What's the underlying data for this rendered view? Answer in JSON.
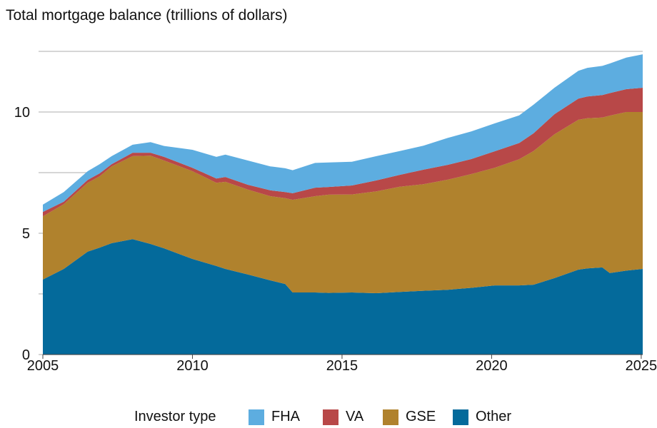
{
  "chart_data": {
    "type": "area",
    "stacked": true,
    "title": "Total mortgage balance (trillions of dollars)",
    "xlabel": "",
    "ylabel": "",
    "xlim": [
      2005,
      2025.05
    ],
    "ylim": [
      0,
      12.5
    ],
    "x_ticks": [
      2005,
      2010,
      2015,
      2020,
      2025
    ],
    "y_ticks": [
      0,
      5,
      10
    ],
    "y_gridlines": [
      0,
      2.5,
      5,
      7.5,
      10,
      12.5
    ],
    "grid": true,
    "legend": {
      "title": "Investor type",
      "placement": "bottom"
    },
    "x": [
      2005,
      2005.7,
      2006.5,
      2006.9,
      2007.3,
      2008.0,
      2008.6,
      2009.05,
      2010.0,
      2010.8,
      2011.1,
      2011.85,
      2012.6,
      2013.1,
      2013.35,
      2014.1,
      2014.55,
      2015.33,
      2016.15,
      2016.93,
      2017.72,
      2018.53,
      2019.32,
      2020.1,
      2020.92,
      2021.4,
      2022.1,
      2022.9,
      2023.2,
      2023.7,
      2023.95,
      2024.5,
      2025.05
    ],
    "series": [
      {
        "name": "Other",
        "color": "#046a9b",
        "values": [
          3.09,
          3.53,
          4.24,
          4.41,
          4.59,
          4.76,
          4.56,
          4.38,
          3.94,
          3.65,
          3.53,
          3.3,
          3.06,
          2.91,
          2.56,
          2.56,
          2.54,
          2.56,
          2.53,
          2.58,
          2.63,
          2.67,
          2.75,
          2.85,
          2.85,
          2.88,
          3.15,
          3.5,
          3.55,
          3.59,
          3.36,
          3.46,
          3.53
        ]
      },
      {
        "name": "GSE",
        "color": "#b0822d",
        "values": [
          2.61,
          2.67,
          2.84,
          2.94,
          3.17,
          3.42,
          3.64,
          3.62,
          3.62,
          3.43,
          3.59,
          3.5,
          3.47,
          3.54,
          3.82,
          3.97,
          4.05,
          4.04,
          4.2,
          4.34,
          4.39,
          4.54,
          4.69,
          4.85,
          5.2,
          5.51,
          5.93,
          6.18,
          6.19,
          6.18,
          6.49,
          6.54,
          6.47
        ]
      },
      {
        "name": "VA",
        "color": "#b84848",
        "values": [
          0.18,
          0.1,
          0.12,
          0.12,
          0.09,
          0.14,
          0.12,
          0.15,
          0.14,
          0.18,
          0.2,
          0.2,
          0.24,
          0.25,
          0.27,
          0.35,
          0.32,
          0.37,
          0.45,
          0.49,
          0.6,
          0.61,
          0.62,
          0.68,
          0.67,
          0.73,
          0.83,
          0.87,
          0.9,
          0.93,
          0.93,
          0.94,
          1.0
        ]
      },
      {
        "name": "FHA",
        "color": "#5dade0",
        "values": [
          0.3,
          0.4,
          0.36,
          0.38,
          0.33,
          0.33,
          0.44,
          0.45,
          0.74,
          0.89,
          0.92,
          1.0,
          0.99,
          0.98,
          0.95,
          1.02,
          1.01,
          0.98,
          1.0,
          0.98,
          0.99,
          1.11,
          1.14,
          1.15,
          1.14,
          1.18,
          1.09,
          1.15,
          1.18,
          1.2,
          1.22,
          1.3,
          1.38
        ]
      }
    ],
    "legend_order": [
      "FHA",
      "VA",
      "GSE",
      "Other"
    ]
  }
}
